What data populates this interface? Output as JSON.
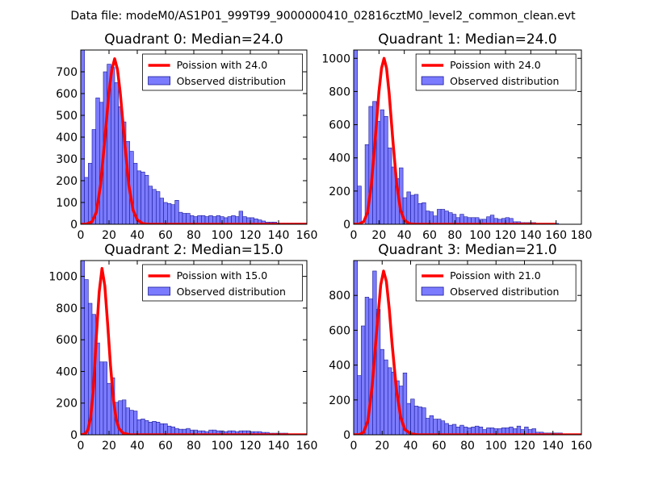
{
  "figure": {
    "suptitle": "Data file: modeM0/AS1P01_999T99_9000000410_02816cztM0_level2_common_clean.evt"
  },
  "colors": {
    "bar_fill": "#7b7bff",
    "bar_edge": "#1a1a99",
    "line": "#ff0000"
  },
  "chart_data": [
    {
      "type": "bar",
      "title": "Quadrant 0: Median=24.0",
      "xlim": [
        0,
        160
      ],
      "ylim": [
        0,
        800
      ],
      "xticks": [
        0,
        20,
        40,
        60,
        80,
        100,
        120,
        140,
        160
      ],
      "yticks": [
        0,
        100,
        200,
        300,
        400,
        500,
        600,
        700
      ],
      "bin_width": 2.67,
      "bin_starts": [
        0,
        2.67,
        5.33,
        8,
        10.67,
        13.33,
        16,
        18.67,
        21.33,
        24,
        26.67,
        29.33,
        32,
        34.67,
        37.33,
        40,
        42.67,
        45.33,
        48,
        50.67,
        53.33,
        56,
        58.67,
        61.33,
        64,
        66.67,
        69.33,
        72,
        74.67,
        77.33,
        80,
        82.67,
        85.33,
        88,
        90.67,
        93.33,
        96,
        98.67,
        101.33,
        104,
        106.67,
        109.33,
        112,
        114.67,
        117.33,
        120,
        122.67,
        125.33,
        128,
        130.67,
        133.33,
        136,
        138.67,
        141.33,
        144,
        146.67,
        149.33,
        152,
        154.67,
        157.33
      ],
      "counts": [
        800,
        215,
        280,
        435,
        580,
        560,
        700,
        735,
        720,
        650,
        540,
        470,
        380,
        335,
        280,
        245,
        240,
        225,
        175,
        160,
        150,
        120,
        100,
        95,
        90,
        110,
        55,
        50,
        50,
        40,
        35,
        40,
        40,
        35,
        40,
        35,
        40,
        35,
        30,
        35,
        40,
        35,
        60,
        35,
        30,
        30,
        25,
        20,
        15,
        10,
        10,
        10,
        5,
        5,
        5,
        5,
        5,
        5,
        5,
        5
      ],
      "poisson": {
        "x": [
          0,
          4,
          8,
          11,
          14,
          17,
          20,
          22,
          24,
          26,
          28,
          31,
          34,
          37,
          40,
          44,
          48,
          160
        ],
        "y": [
          0,
          1,
          12,
          55,
          180,
          390,
          610,
          710,
          760,
          710,
          600,
          380,
          180,
          65,
          20,
          3,
          0,
          0
        ]
      },
      "legend": [
        "Poission with 24.0",
        "Observed distribution"
      ]
    },
    {
      "type": "bar",
      "title": "Quadrant 1: Median=24.0",
      "xlim": [
        0,
        180
      ],
      "ylim": [
        0,
        1050
      ],
      "xticks": [
        0,
        20,
        40,
        60,
        80,
        100,
        120,
        140,
        160,
        180
      ],
      "yticks": [
        0,
        200,
        400,
        600,
        800,
        1000
      ],
      "bin_width": 3,
      "bin_starts": [
        0,
        3,
        6,
        9,
        12,
        15,
        18,
        21,
        24,
        27,
        30,
        33,
        36,
        39,
        42,
        45,
        48,
        51,
        54,
        57,
        60,
        63,
        66,
        69,
        72,
        75,
        78,
        81,
        84,
        87,
        90,
        93,
        96,
        99,
        102,
        105,
        108,
        111,
        114,
        117,
        120,
        123,
        126,
        129,
        132,
        135,
        138,
        141,
        144,
        147,
        150,
        153,
        156,
        159
      ],
      "counts": [
        1050,
        230,
        0,
        480,
        710,
        740,
        620,
        690,
        650,
        460,
        345,
        275,
        340,
        160,
        195,
        175,
        180,
        125,
        130,
        80,
        75,
        50,
        90,
        90,
        80,
        70,
        60,
        40,
        60,
        45,
        40,
        40,
        40,
        30,
        30,
        45,
        55,
        35,
        30,
        35,
        40,
        35,
        15,
        15,
        10,
        10,
        10,
        10,
        5,
        5,
        5,
        5,
        5,
        5
      ],
      "poisson": {
        "x": [
          0,
          4,
          8,
          11,
          14,
          17,
          20,
          22,
          24,
          26,
          28,
          31,
          34,
          37,
          40,
          44,
          48,
          160
        ],
        "y": [
          0,
          1,
          16,
          72,
          240,
          510,
          800,
          940,
          1000,
          940,
          790,
          500,
          240,
          85,
          25,
          4,
          0,
          0
        ]
      },
      "legend": [
        "Poission with 24.0",
        "Observed distribution"
      ]
    },
    {
      "type": "bar",
      "title": "Quadrant 2: Median=15.0",
      "xlim": [
        0,
        160
      ],
      "ylim": [
        0,
        1100
      ],
      "xticks": [
        0,
        20,
        40,
        60,
        80,
        100,
        120,
        140,
        160
      ],
      "yticks": [
        0,
        200,
        400,
        600,
        800,
        1000
      ],
      "bin_width": 2.67,
      "bin_starts": [
        0,
        2.67,
        5.33,
        8,
        10.67,
        13.33,
        16,
        18.67,
        21.33,
        24,
        26.67,
        29.33,
        32,
        34.67,
        37.33,
        40,
        42.67,
        45.33,
        48,
        50.67,
        53.33,
        56,
        58.67,
        61.33,
        64,
        66.67,
        69.33,
        72,
        74.67,
        77.33,
        80,
        82.67,
        85.33,
        88,
        90.67,
        93.33,
        96,
        98.67,
        101.33,
        104,
        106.67,
        109.33,
        112,
        114.67,
        117.33,
        120,
        122.67,
        125.33,
        128,
        130.67,
        133.33,
        136,
        138.67,
        141.33,
        144,
        146.67,
        149.33,
        152,
        154.67,
        157.33
      ],
      "counts": [
        1100,
        980,
        830,
        760,
        580,
        460,
        460,
        325,
        360,
        205,
        215,
        220,
        170,
        155,
        150,
        95,
        100,
        90,
        80,
        85,
        80,
        70,
        70,
        55,
        50,
        40,
        35,
        35,
        40,
        30,
        30,
        25,
        25,
        20,
        30,
        30,
        25,
        25,
        20,
        25,
        25,
        20,
        25,
        25,
        25,
        20,
        20,
        20,
        15,
        15,
        10,
        10,
        10,
        10,
        10,
        5,
        5,
        5,
        5,
        5
      ],
      "poisson": {
        "x": [
          0,
          3,
          5,
          7,
          9,
          11,
          13,
          15,
          17,
          19,
          21,
          23,
          25,
          27,
          30,
          35,
          160
        ],
        "y": [
          0,
          5,
          30,
          110,
          300,
          620,
          900,
          1050,
          940,
          700,
          440,
          230,
          100,
          40,
          10,
          0,
          0
        ]
      },
      "legend": [
        "Poission with 15.0",
        "Observed distribution"
      ]
    },
    {
      "type": "bar",
      "title": "Quadrant 3: Median=21.0",
      "xlim": [
        0,
        160
      ],
      "ylim": [
        0,
        1000
      ],
      "xticks": [
        0,
        20,
        40,
        60,
        80,
        100,
        120,
        140,
        160
      ],
      "yticks": [
        0,
        200,
        400,
        600,
        800
      ],
      "bin_width": 2.67,
      "bin_starts": [
        0,
        2.67,
        5.33,
        8,
        10.67,
        13.33,
        16,
        18.67,
        21.33,
        24,
        26.67,
        29.33,
        32,
        34.67,
        37.33,
        40,
        42.67,
        45.33,
        48,
        50.67,
        53.33,
        56,
        58.67,
        61.33,
        64,
        66.67,
        69.33,
        72,
        74.67,
        77.33,
        80,
        82.67,
        85.33,
        88,
        90.67,
        93.33,
        96,
        98.67,
        101.33,
        104,
        106.67,
        109.33,
        112,
        114.67,
        117.33,
        120,
        122.67,
        125.33,
        128,
        130.67,
        133.33,
        136,
        138.67,
        141.33,
        144,
        146.67,
        149.33,
        152,
        154.67,
        157.33
      ],
      "counts": [
        1000,
        340,
        625,
        790,
        780,
        940,
        720,
        490,
        430,
        385,
        360,
        310,
        280,
        355,
        180,
        205,
        165,
        160,
        155,
        95,
        110,
        90,
        90,
        80,
        65,
        55,
        60,
        45,
        55,
        45,
        40,
        45,
        50,
        45,
        30,
        40,
        40,
        35,
        35,
        40,
        40,
        45,
        35,
        50,
        30,
        45,
        30,
        35,
        15,
        15,
        10,
        10,
        10,
        10,
        10,
        5,
        5,
        5,
        5,
        5
      ],
      "poisson": {
        "x": [
          0,
          4,
          7,
          10,
          13,
          16,
          19,
          21,
          23,
          25,
          27,
          30,
          33,
          36,
          40,
          45,
          160
        ],
        "y": [
          0,
          1,
          15,
          80,
          280,
          580,
          860,
          940,
          880,
          720,
          520,
          260,
          100,
          30,
          6,
          0,
          0
        ]
      },
      "legend": [
        "Poission with 21.0",
        "Observed distribution"
      ]
    }
  ]
}
